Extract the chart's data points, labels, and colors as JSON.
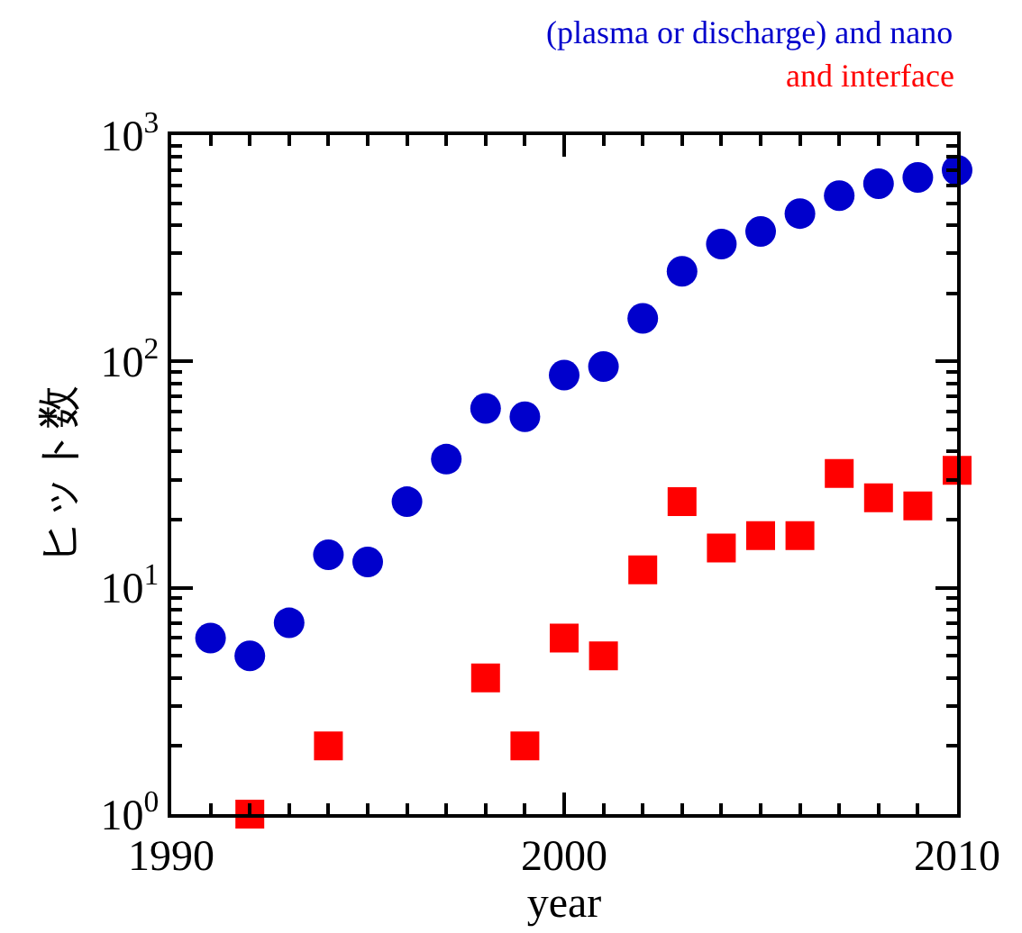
{
  "chart_data": {
    "type": "scatter",
    "xlabel": "year",
    "ylabel": "ヒット数",
    "log": "y",
    "legend": false,
    "xlim": [
      1990,
      2010
    ],
    "xticks": [
      1990,
      2000,
      2010
    ],
    "ylim": [
      1,
      1000
    ],
    "yticks": [
      {
        "value": 1,
        "label": "10$^{0}$"
      },
      {
        "value": 10,
        "label": "10$^{1}$"
      },
      {
        "value": 100,
        "label": "10$^{2}$"
      },
      {
        "value": 1000,
        "label": "10$^{3}$"
      }
    ],
    "series": [
      {
        "name": "(plasma or discharge) and nano",
        "color": "#0000cc",
        "marker": "circle",
        "x": [
          1991,
          1992,
          1993,
          1994,
          1995,
          1996,
          1997,
          1998,
          1999,
          2000,
          2001,
          2002,
          2003,
          2004,
          2005,
          2006,
          2007,
          2008,
          2009,
          2010
        ],
        "values": [
          6,
          5,
          7,
          14,
          13,
          24,
          37,
          62,
          57,
          87,
          95,
          155,
          250,
          330,
          375,
          450,
          540,
          610,
          650,
          700
        ]
      },
      {
        "name": "and interface",
        "color": "#ff0000",
        "marker": "square",
        "x": [
          1992,
          1994,
          1998,
          1999,
          2000,
          2001,
          2002,
          2003,
          2004,
          2005,
          2006,
          2007,
          2008,
          2009,
          2010
        ],
        "values": [
          1,
          2,
          4,
          2,
          6,
          5,
          12,
          24,
          15,
          17,
          17,
          32,
          25,
          23,
          33
        ]
      }
    ]
  }
}
